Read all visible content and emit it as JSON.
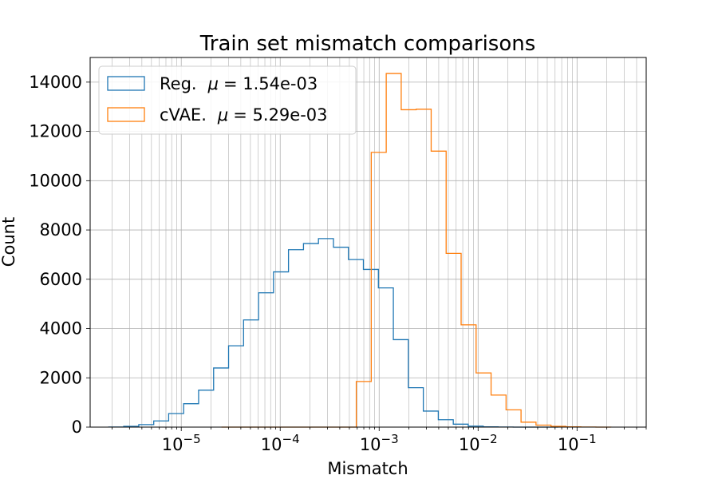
{
  "chart_data": {
    "type": "histogram",
    "title": "Train set mismatch comparisons",
    "xlabel": "Mismatch",
    "ylabel": "Count",
    "x_scale": "log",
    "xlim": [
      1.2e-06,
      0.5
    ],
    "ylim": [
      0,
      15000
    ],
    "grid": true,
    "grid_minor_x": true,
    "legend_position": "upper-left",
    "y_ticks": [
      0,
      2000,
      4000,
      6000,
      8000,
      10000,
      12000,
      14000
    ],
    "x_ticks": [
      {
        "value": 1e-05,
        "base": "10",
        "exp": "−5"
      },
      {
        "value": 0.0001,
        "base": "10",
        "exp": "−4"
      },
      {
        "value": 0.001,
        "base": "10",
        "exp": "−3"
      },
      {
        "value": 0.01,
        "base": "10",
        "exp": "−2"
      },
      {
        "value": 0.1,
        "base": "10",
        "exp": "−1"
      }
    ],
    "series": [
      {
        "name": "Reg.  μ = 1.54e-03",
        "label_name": "Reg.",
        "label_mu": "μ",
        "label_value": "= 1.54e-03",
        "color": "#1f77b4",
        "bin_edges": [
          1.85e-06,
          2.62e-06,
          3.72e-06,
          5.27e-06,
          7.46e-06,
          1.057e-05,
          1.498e-05,
          2.123e-05,
          3.008e-05,
          4.263e-05,
          6.04e-05,
          8.56e-05,
          0.0001213,
          0.0001719,
          0.0002436,
          0.0003452,
          0.0004892,
          0.0006932,
          0.0009823,
          0.001392,
          0.001973,
          0.002795,
          0.003961,
          0.005613,
          0.007954,
          0.01127,
          0.01597,
          0.02263,
          0.03207,
          0.04545,
          0.0644
        ],
        "counts": [
          5,
          30,
          100,
          250,
          550,
          950,
          1500,
          2400,
          3300,
          4350,
          5450,
          6300,
          7200,
          7450,
          7650,
          7300,
          6800,
          6400,
          5650,
          3550,
          1600,
          650,
          300,
          120,
          40,
          10,
          5,
          0,
          0,
          0
        ]
      },
      {
        "name": "cVAE.  μ = 5.29e-03",
        "label_name": "cVAE.",
        "label_mu": "μ",
        "label_value": "= 5.29e-03",
        "color": "#ff7f0e",
        "bin_edges": [
          2.55e-05,
          3.61e-05,
          5.12e-05,
          7.25e-05,
          0.0001028,
          0.0001456,
          0.0002064,
          0.0002924,
          0.0004143,
          0.0005872,
          0.000832,
          0.001179,
          0.001671,
          0.002368,
          0.003355,
          0.004754,
          0.006737,
          0.009547,
          0.01353,
          0.01917,
          0.02717,
          0.03849,
          0.05455,
          0.0773,
          0.1095,
          0.1552,
          0.22
        ],
        "counts": [
          0,
          0,
          0,
          0,
          0,
          0,
          0,
          0,
          0,
          1850,
          11150,
          14350,
          12880,
          12900,
          11200,
          7050,
          4150,
          2200,
          1300,
          700,
          200,
          80,
          30,
          10,
          3,
          1
        ]
      }
    ]
  }
}
